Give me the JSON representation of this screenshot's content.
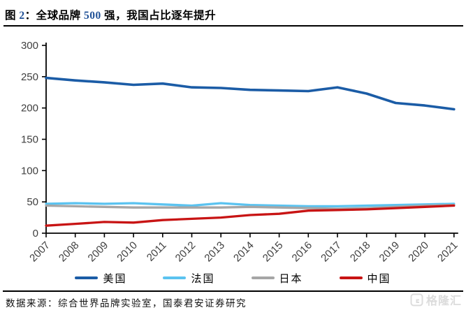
{
  "title": {
    "parts": [
      {
        "text": "图 "
      },
      {
        "text": "2"
      },
      {
        "text": "：全球品牌 "
      },
      {
        "text": "500"
      },
      {
        "text": " 强，我国占比逐年提升"
      }
    ],
    "number_color": "#1F5096"
  },
  "chart_data": {
    "type": "line",
    "title": "全球品牌500强，我国占比逐年提升",
    "xlabel": "",
    "ylabel": "",
    "x": [
      "2007",
      "2008",
      "2009",
      "2010",
      "2011",
      "2012",
      "2013",
      "2014",
      "2015",
      "2016",
      "2017",
      "2018",
      "2019",
      "2020",
      "2021"
    ],
    "ylim": [
      0,
      300
    ],
    "ytick_step": 50,
    "grid": false,
    "legend_position": "bottom",
    "series": [
      {
        "name": "美国",
        "color": "#1B5CA6",
        "values": [
          248,
          244,
          241,
          237,
          239,
          233,
          232,
          229,
          228,
          227,
          233,
          223,
          208,
          204,
          198
        ]
      },
      {
        "name": "法国",
        "color": "#5BC3F0",
        "values": [
          47,
          48,
          47,
          48,
          46,
          44,
          48,
          45,
          44,
          43,
          43,
          44,
          45,
          46,
          47
        ]
      },
      {
        "name": "日本",
        "color": "#A6A6A6",
        "values": [
          44,
          43,
          42,
          41,
          41,
          41,
          41,
          42,
          41,
          40,
          39,
          40,
          42,
          44,
          45
        ]
      },
      {
        "name": "中国",
        "color": "#C81414",
        "values": [
          12,
          15,
          18,
          17,
          21,
          23,
          25,
          29,
          31,
          36,
          37,
          38,
          40,
          42,
          44
        ]
      }
    ]
  },
  "footer": {
    "source": "数据来源：综合世界品牌实验室，国泰君安证券研究"
  },
  "watermark": {
    "text": "格隆汇"
  }
}
